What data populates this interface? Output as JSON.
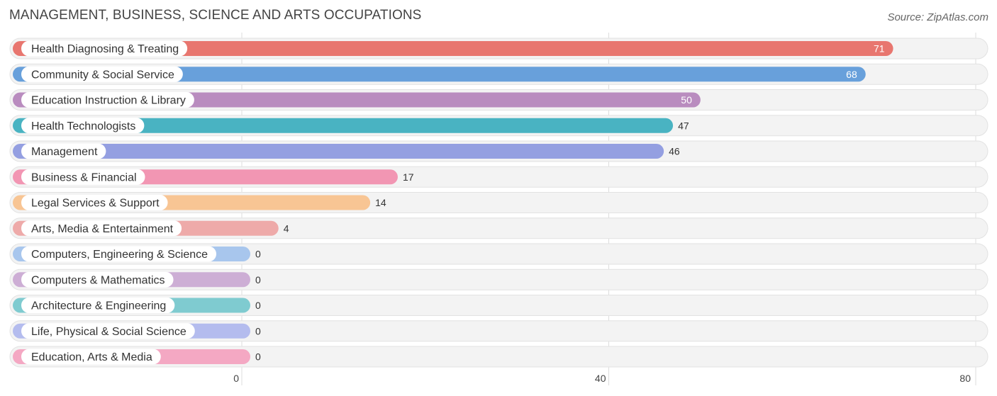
{
  "header": {
    "title": "MANAGEMENT, BUSINESS, SCIENCE AND ARTS OCCUPATIONS",
    "source": "Source: ZipAtlas.com"
  },
  "chart_data": {
    "type": "bar",
    "orientation": "horizontal",
    "title": "MANAGEMENT, BUSINESS, SCIENCE AND ARTS OCCUPATIONS",
    "xlabel": "",
    "ylabel": "",
    "xlim": [
      0,
      80
    ],
    "ticks": [
      0,
      40,
      80
    ],
    "grid": true,
    "categories": [
      "Health Diagnosing & Treating",
      "Community & Social Service",
      "Education Instruction & Library",
      "Health Technologists",
      "Management",
      "Business & Financial",
      "Legal Services & Support",
      "Arts, Media & Entertainment",
      "Computers, Engineering & Science",
      "Computers & Mathematics",
      "Architecture & Engineering",
      "Life, Physical & Social Science",
      "Education, Arts & Media"
    ],
    "values": [
      71,
      68,
      50,
      47,
      46,
      17,
      14,
      4,
      0,
      0,
      0,
      0,
      0
    ],
    "colors": [
      "#e8766f",
      "#68a0db",
      "#b98cbf",
      "#49b3c2",
      "#949fe1",
      "#f296b3",
      "#f8c594",
      "#eeaaa9",
      "#a8c6ed",
      "#cdaed5",
      "#7fcbd0",
      "#b4bcee",
      "#f4a8c3"
    ]
  }
}
